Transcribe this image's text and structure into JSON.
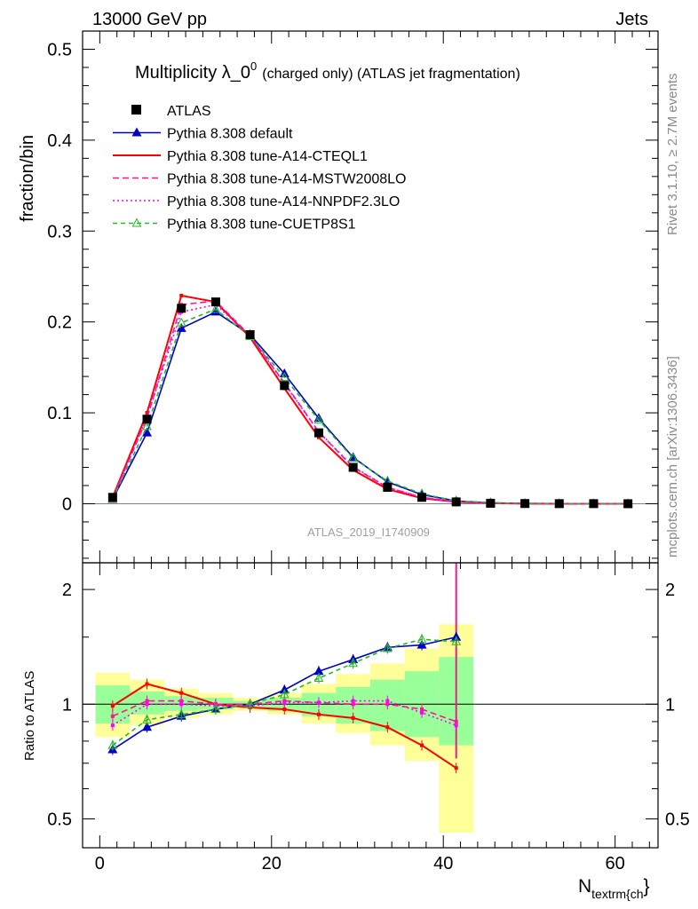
{
  "header": {
    "energy_label": "13000 GeV pp",
    "category_label": "Jets"
  },
  "side_text": {
    "rivet": "Rivet 3.1.10, ≥ 2.7M events",
    "site": "mcplots.cern.ch [arXiv:1306.3436]"
  },
  "chart_data": [
    {
      "type": "line",
      "title_main": "Multiplicity λ_0",
      "title_sup": "0",
      "title_rest": "(charged only) (ATLAS jet fragmentation)",
      "ylabel": "fraction/bin",
      "xlabel_main": "N",
      "xlabel_sub": "textrm{ch",
      "xlabel_tail": "}",
      "watermark": "ATLAS_2019_I1740909",
      "xlim": [
        -2,
        65
      ],
      "ylim": [
        -0.065,
        0.52
      ],
      "yticks": [
        0,
        0.1,
        0.2,
        0.3,
        0.4,
        0.5
      ],
      "ytick_labels": [
        "0",
        "0.1",
        "0.2",
        "0.3",
        "0.4",
        "0.5"
      ],
      "x": [
        1.5,
        5.5,
        9.5,
        13.5,
        17.5,
        21.5,
        25.5,
        29.5,
        33.5,
        37.5,
        41.5,
        45.5,
        49.5,
        53.5,
        57.5,
        61.5
      ],
      "legend": {
        "placement": "top-left",
        "entries": [
          "ATLAS",
          "Pythia 8.308 default",
          "Pythia 8.308 tune-A14-CTEQL1",
          "Pythia 8.308 tune-A14-MSTW2008LO",
          "Pythia 8.308 tune-A14-NNPDF2.3LO",
          "Pythia 8.308 tune-CUETP8S1"
        ]
      },
      "series": [
        {
          "name": "ATLAS",
          "color": "#000000",
          "style": "square-markers",
          "values": [
            0.007,
            0.093,
            0.215,
            0.222,
            0.186,
            0.13,
            0.078,
            0.04,
            0.018,
            0.007,
            0.002,
            0.0005,
            0.0002,
            0.0001,
            0.0001,
            0.0
          ]
        },
        {
          "name": "Pythia 8.308 default",
          "color": "#0000cc",
          "style": "solid-triangle",
          "values": [
            0.005,
            0.078,
            0.193,
            0.211,
            0.186,
            0.143,
            0.094,
            0.051,
            0.024,
            0.01,
            0.003,
            0.001,
            0.0003,
            0.0001,
            0.0,
            0.0
          ]
        },
        {
          "name": "Pythia 8.308 tune-A14-CTEQL1",
          "color": "#ff0000",
          "style": "solid",
          "values": [
            0.007,
            0.1,
            0.229,
            0.222,
            0.183,
            0.127,
            0.073,
            0.037,
            0.016,
            0.006,
            0.002,
            0.0005,
            0.0001,
            0.0,
            0.0,
            0.0
          ]
        },
        {
          "name": "Pythia 8.308 tune-A14-MSTW2008LO",
          "color": "#ff1493",
          "style": "dashed",
          "values": [
            0.006,
            0.094,
            0.219,
            0.223,
            0.185,
            0.133,
            0.079,
            0.04,
            0.018,
            0.007,
            0.002,
            0.0005,
            0.0001,
            0.0,
            0.0,
            0.0
          ]
        },
        {
          "name": "Pythia 8.308 tune-A14-NNPDF2.3LO",
          "color": "#ff00ff",
          "style": "dotted",
          "values": [
            0.006,
            0.095,
            0.211,
            0.219,
            0.185,
            0.132,
            0.079,
            0.041,
            0.018,
            0.007,
            0.002,
            0.0005,
            0.0001,
            0.0,
            0.0,
            0.0
          ]
        },
        {
          "name": "Pythia 8.308 tune-CUETP8S1",
          "color": "#22bb22",
          "style": "dashed-open-triangle",
          "values": [
            0.0055,
            0.085,
            0.199,
            0.214,
            0.184,
            0.139,
            0.092,
            0.05,
            0.025,
            0.011,
            0.003,
            0.001,
            0.0003,
            0.0001,
            0.0,
            0.0
          ]
        }
      ]
    },
    {
      "type": "line",
      "ylabel": "Ratio to ATLAS",
      "xlim": [
        -2,
        65
      ],
      "ylim": [
        0.42,
        2.35
      ],
      "log_y": true,
      "xticks": [
        0,
        20,
        40,
        60
      ],
      "xtick_labels": [
        "0",
        "20",
        "40",
        "60"
      ],
      "yticks": [
        0.5,
        1,
        2
      ],
      "ytick_labels": [
        "0.5",
        "1",
        "2"
      ],
      "reference_line": 1,
      "bins": [
        [
          -0.5,
          3.5
        ],
        [
          3.5,
          7.5
        ],
        [
          7.5,
          11.5
        ],
        [
          11.5,
          15.5
        ],
        [
          15.5,
          19.5
        ],
        [
          19.5,
          23.5
        ],
        [
          23.5,
          27.5
        ],
        [
          27.5,
          31.5
        ],
        [
          31.5,
          35.5
        ],
        [
          35.5,
          39.5
        ],
        [
          39.5,
          43.5
        ]
      ],
      "band_stat": [
        [
          0.89,
          1.12
        ],
        [
          0.94,
          1.08
        ],
        [
          0.96,
          1.05
        ],
        [
          0.97,
          1.04
        ],
        [
          0.98,
          1.02
        ],
        [
          0.96,
          1.04
        ],
        [
          0.93,
          1.07
        ],
        [
          0.89,
          1.11
        ],
        [
          0.85,
          1.16
        ],
        [
          0.82,
          1.22
        ],
        [
          0.78,
          1.33
        ]
      ],
      "band_total": [
        [
          0.82,
          1.21
        ],
        [
          0.88,
          1.16
        ],
        [
          0.92,
          1.1
        ],
        [
          0.94,
          1.07
        ],
        [
          0.96,
          1.04
        ],
        [
          0.94,
          1.07
        ],
        [
          0.89,
          1.13
        ],
        [
          0.84,
          1.2
        ],
        [
          0.78,
          1.28
        ],
        [
          0.71,
          1.4
        ],
        [
          0.46,
          1.62
        ]
      ],
      "x": [
        1.5,
        5.5,
        9.5,
        13.5,
        17.5,
        21.5,
        25.5,
        29.5,
        33.5,
        37.5,
        41.5
      ],
      "series": [
        {
          "name": "Pythia 8.308 default",
          "color": "#0000cc",
          "style": "solid-triangle",
          "values": [
            0.76,
            0.87,
            0.93,
            0.97,
            1.0,
            1.09,
            1.22,
            1.31,
            1.41,
            1.43,
            1.5
          ]
        },
        {
          "name": "Pythia 8.308 tune-A14-CTEQL1",
          "color": "#ff0000",
          "style": "solid",
          "values": [
            0.99,
            1.13,
            1.07,
            1.0,
            0.98,
            0.97,
            0.94,
            0.92,
            0.87,
            0.78,
            0.68
          ]
        },
        {
          "name": "Pythia 8.308 tune-A14-MSTW2008LO",
          "color": "#ff1493",
          "style": "dashed",
          "values": [
            0.93,
            1.02,
            1.02,
            1.0,
            1.0,
            1.02,
            1.01,
            1.0,
            1.0,
            0.97,
            0.9
          ]
        },
        {
          "name": "Pythia 8.308 tune-A14-NNPDF2.3LO",
          "color": "#ff00ff",
          "style": "dotted",
          "values": [
            0.88,
            1.0,
            1.0,
            0.99,
            0.99,
            1.01,
            1.01,
            1.02,
            1.02,
            0.95,
            0.88
          ]
        },
        {
          "name": "Pythia 8.308 tune-CUETP8S1",
          "color": "#22bb22",
          "style": "dashed-open-triangle",
          "values": [
            0.78,
            0.91,
            0.94,
            0.97,
            1.0,
            1.06,
            1.17,
            1.28,
            1.4,
            1.48,
            1.46
          ]
        }
      ]
    }
  ]
}
